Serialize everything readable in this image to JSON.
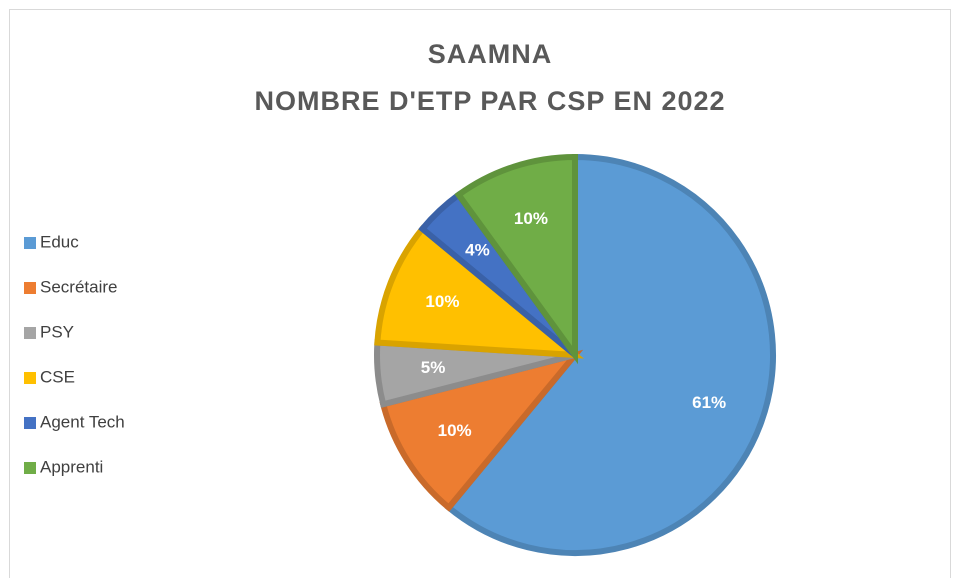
{
  "chart_data": {
    "type": "pie",
    "title": [
      "SAAMNA",
      "NOMBRE D'ETP PAR CSP EN 2022"
    ],
    "categories": [
      "Educ",
      "Secrétaire",
      "PSY",
      "CSE",
      "Agent Tech",
      "Apprenti"
    ],
    "values": [
      61,
      10,
      5,
      10,
      4,
      10
    ],
    "value_labels": [
      "61%",
      "10%",
      "5%",
      "10%",
      "4%",
      "10%"
    ],
    "colors": [
      "#5b9bd5",
      "#ed7d31",
      "#a5a5a5",
      "#ffc000",
      "#4472c4",
      "#70ad47"
    ],
    "legend": "left"
  }
}
